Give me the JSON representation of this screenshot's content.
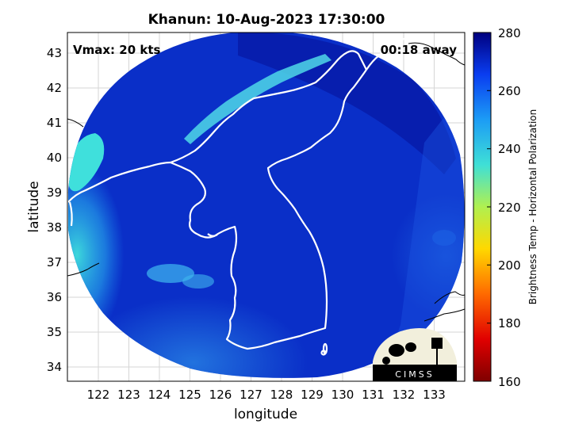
{
  "title": "Khanun: 10-Aug-2023 17:30:00",
  "vmax_label": "Vmax: 20 kts",
  "time_away_label": "00:18 away",
  "logo_text": "CIMSS",
  "xlabel": "longitude",
  "ylabel": "latitude",
  "colorbar_label": "Brightness Temp - Horizontal Polarization",
  "x_ticks": [
    "122",
    "123",
    "124",
    "125",
    "126",
    "127",
    "128",
    "129",
    "130",
    "131",
    "132",
    "133"
  ],
  "y_ticks": [
    "34",
    "35",
    "36",
    "37",
    "38",
    "39",
    "40",
    "41",
    "42",
    "43"
  ],
  "colorbar_ticks": [
    "160",
    "180",
    "200",
    "220",
    "240",
    "260",
    "280"
  ],
  "colors": {
    "field_base": "#0a2fc8",
    "field_deep": "#06138f",
    "warm_band": "#3aa8f0",
    "cyan": "#3fe0dc",
    "coast": "#ffffff",
    "map_bg": "#ffffff",
    "grid": "#cfcfcf"
  }
}
